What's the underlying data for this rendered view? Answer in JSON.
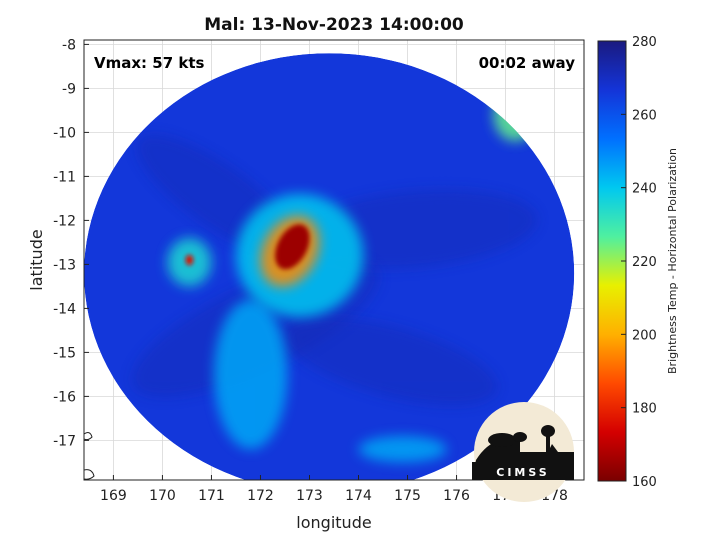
{
  "chart_data": {
    "type": "heatmap",
    "title": "Mal: 13-Nov-2023 14:00:00",
    "xlabel": "longitude",
    "ylabel": "latitude",
    "xlim": [
      168.4,
      178.6
    ],
    "ylim": [
      -17.9,
      -7.9
    ],
    "xticks": [
      169,
      170,
      171,
      172,
      173,
      174,
      175,
      176,
      177,
      178
    ],
    "yticks": [
      -8,
      -9,
      -10,
      -11,
      -12,
      -13,
      -14,
      -15,
      -16,
      -17
    ],
    "grid": true,
    "annotations": {
      "vmax": "Vmax: 57 kts",
      "time_offset": "00:02 away"
    },
    "colorbar": {
      "label": "Brightness Temp - Horizontal Polarization",
      "range": [
        160,
        280
      ],
      "ticks": [
        280,
        260,
        240,
        220,
        200,
        180,
        160
      ],
      "colors": [
        "#7a0000",
        "#d40000",
        "#ff4a00",
        "#ffb000",
        "#e8f000",
        "#4ff0a0",
        "#00c8f0",
        "#0070ff",
        "#1434d8",
        "#1a1a80"
      ]
    },
    "swath": {
      "center": [
        173.4,
        -13.2
      ],
      "radius_deg": 5.0,
      "background_value": 266
    },
    "features": [
      {
        "name": "eyewall",
        "lon": 172.65,
        "lat": -12.6,
        "value": 165,
        "rx": 0.3,
        "ry": 0.55
      },
      {
        "name": "inner-core",
        "lon": 172.6,
        "lat": -12.7,
        "value": 195,
        "rx": 0.55,
        "ry": 0.85
      },
      {
        "name": "spiral-band",
        "lon": 172.8,
        "lat": -12.8,
        "value": 240,
        "rx": 1.3,
        "ry": 1.4
      },
      {
        "name": "west-cell",
        "lon": 170.55,
        "lat": -12.9,
        "value": 175,
        "rx": 0.08,
        "ry": 0.12
      },
      {
        "name": "west-cell-halo",
        "lon": 170.55,
        "lat": -12.95,
        "value": 235,
        "rx": 0.45,
        "ry": 0.55
      },
      {
        "name": "south-band",
        "lon": 171.8,
        "lat": -15.5,
        "value": 245,
        "rx": 0.75,
        "ry": 1.7
      },
      {
        "name": "south-east-patch",
        "lon": 174.9,
        "lat": -17.2,
        "value": 245,
        "rx": 0.9,
        "ry": 0.3
      },
      {
        "name": "north-east-patch",
        "lon": 177.2,
        "lat": -9.6,
        "value": 225,
        "rx": 0.45,
        "ry": 0.6
      }
    ],
    "logo": "CIMSS"
  }
}
